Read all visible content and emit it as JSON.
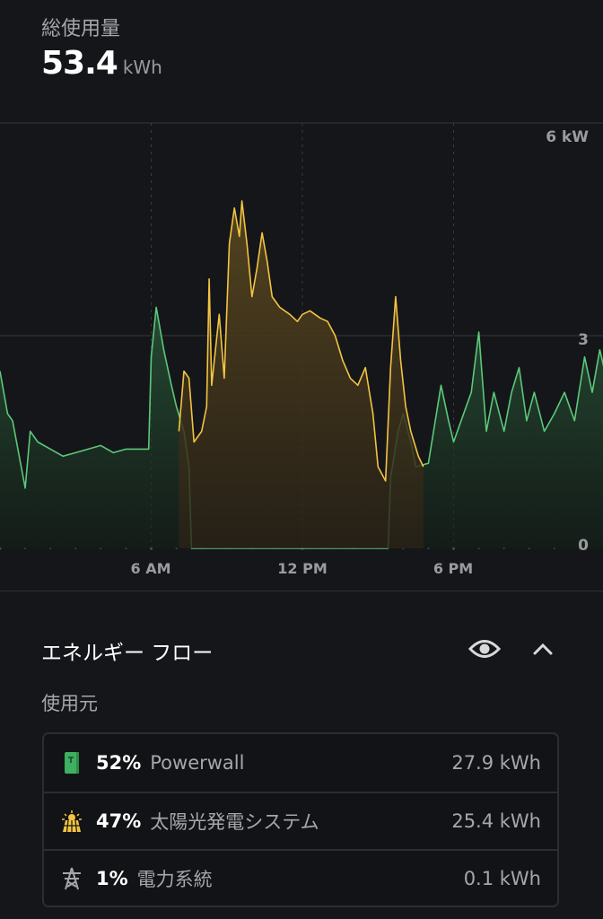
{
  "header": {
    "label": "総使用量",
    "value": "53.4",
    "unit": "kWh"
  },
  "energy_flow": {
    "title": "エネルギー フロー",
    "eye_icon": "eye-icon",
    "collapse_icon": "chevron-up-icon",
    "section_label": "使用元",
    "sources": [
      {
        "icon": "powerwall-icon",
        "percent": "52%",
        "name": "Powerwall",
        "value": "27.9 kWh",
        "color": "#3fb060"
      },
      {
        "icon": "solar-panel-icon",
        "percent": "47%",
        "name": "太陽光発電システム",
        "value": "25.4 kWh",
        "color": "#f2c443"
      },
      {
        "icon": "grid-tower-icon",
        "percent": "1%",
        "name": "電力系統",
        "value": "0.1 kWh",
        "color": "#a6a7aa"
      }
    ]
  },
  "chart_data": {
    "type": "area",
    "x_unit": "hour of day",
    "xlim": [
      0,
      24
    ],
    "ylim": [
      0,
      6
    ],
    "x_ticks": [
      {
        "x": 6,
        "label": "6 AM"
      },
      {
        "x": 12,
        "label": "12 PM"
      },
      {
        "x": 18,
        "label": "6 PM"
      }
    ],
    "y_ticks": [
      {
        "y": 6,
        "label": "6 kW"
      },
      {
        "y": 3,
        "label": "3"
      },
      {
        "y": 0,
        "label": "0"
      }
    ],
    "grid": true,
    "series": [
      {
        "color": "#5cc87a",
        "x": [
          0,
          0.3,
          0.5,
          1,
          1.2,
          1.5,
          2,
          2.5,
          3,
          3.5,
          4,
          4.5,
          5,
          5.5,
          5.9,
          6.0,
          6.2,
          6.5,
          6.8,
          7.0,
          7.3,
          7.5,
          7.6,
          15.4,
          15.5,
          15.8,
          16,
          16.3,
          16.5,
          17,
          17.5,
          17.8,
          18,
          18.3,
          18.7,
          19,
          19.3,
          19.6,
          20,
          20.3,
          20.6,
          20.9,
          21.2,
          21.6,
          22,
          22.4,
          22.8,
          23.2,
          23.5,
          23.8,
          24
        ],
        "y": [
          2.5,
          1.9,
          1.8,
          0.85,
          1.65,
          1.5,
          1.4,
          1.3,
          1.35,
          1.4,
          1.45,
          1.35,
          1.4,
          1.4,
          1.4,
          2.7,
          3.4,
          2.8,
          2.3,
          2.0,
          1.65,
          1.15,
          0,
          0,
          1.0,
          1.65,
          1.9,
          1.5,
          1.15,
          1.2,
          2.3,
          1.8,
          1.5,
          1.8,
          2.2,
          3.05,
          1.65,
          2.2,
          1.65,
          2.2,
          2.55,
          1.8,
          2.2,
          1.65,
          1.9,
          2.2,
          1.8,
          2.7,
          2.2,
          2.8,
          2.5
        ]
      },
      {
        "color": "#f2c443",
        "x": [
          7.1,
          7.3,
          7.5,
          7.7,
          8,
          8.2,
          8.3,
          8.4,
          8.7,
          8.9,
          9.1,
          9.3,
          9.5,
          9.6,
          9.8,
          10,
          10.2,
          10.4,
          10.6,
          10.8,
          11.1,
          11.5,
          11.8,
          12,
          12.3,
          12.7,
          13,
          13.3,
          13.6,
          13.9,
          14.2,
          14.5,
          14.8,
          15.0,
          15.3,
          15.5,
          15.7,
          15.9,
          16.1,
          16.3,
          16.6,
          16.8
        ],
        "y": [
          1.65,
          2.5,
          2.4,
          1.5,
          1.65,
          2.0,
          3.8,
          2.3,
          3.3,
          2.4,
          4.3,
          4.8,
          4.4,
          4.9,
          4.3,
          3.55,
          3.95,
          4.45,
          4.05,
          3.55,
          3.4,
          3.3,
          3.2,
          3.3,
          3.35,
          3.25,
          3.2,
          3.0,
          2.65,
          2.4,
          2.3,
          2.55,
          1.9,
          1.15,
          0.95,
          2.55,
          3.55,
          2.65,
          2.0,
          1.65,
          1.3,
          1.15
        ]
      }
    ]
  }
}
